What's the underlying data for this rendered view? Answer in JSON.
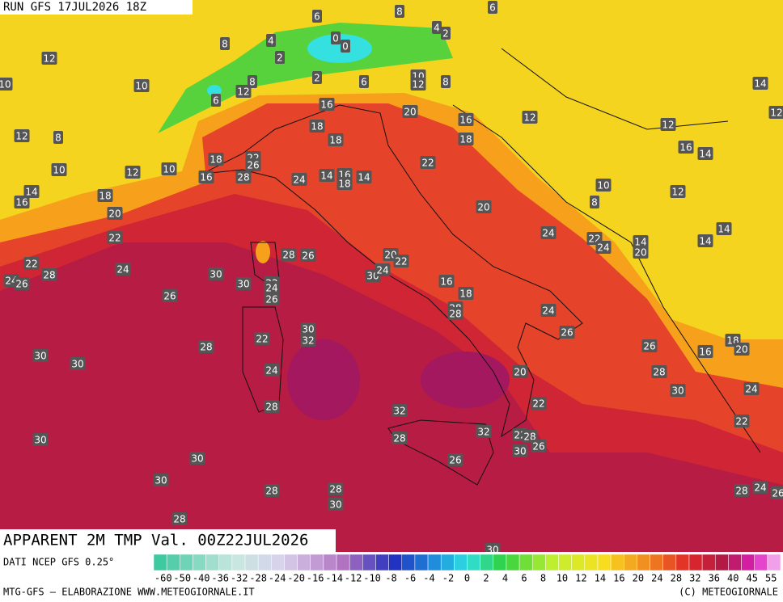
{
  "header": {
    "run": "RUN GFS 17JUL2026 18Z"
  },
  "map": {
    "title": "APPARENT 2M TMP Val. 00Z22JUL2026",
    "labels": [
      6,
      8,
      6,
      8,
      4,
      0,
      0,
      4,
      2,
      12,
      2,
      10,
      10,
      8,
      2,
      6,
      10,
      12,
      8,
      14,
      12,
      6,
      16,
      20,
      16,
      12,
      12,
      12,
      8,
      18,
      18,
      18,
      12,
      16,
      14,
      18,
      22,
      26,
      22,
      10,
      12,
      10,
      16,
      28,
      24,
      14,
      16,
      18,
      14,
      10,
      14,
      18,
      12,
      16,
      8,
      20,
      20,
      24,
      22,
      14,
      20,
      24,
      14,
      14,
      22,
      28,
      26,
      20,
      22,
      22,
      24,
      28,
      30,
      30,
      22,
      24,
      30,
      24,
      24,
      26,
      16,
      18,
      26,
      26,
      28,
      28,
      24,
      30,
      32,
      26,
      22,
      28,
      18,
      20,
      16,
      26,
      30,
      30,
      24,
      28,
      20,
      24,
      30,
      22,
      28,
      32,
      22,
      30,
      28,
      32,
      22,
      28,
      26,
      30,
      26,
      30,
      30,
      28,
      28,
      28,
      24,
      26,
      30,
      28,
      30
    ]
  },
  "legend": {
    "source": "DATI NCEP GFS 0.25°",
    "scale": [
      -60,
      -50,
      -40,
      -36,
      -32,
      -28,
      -24,
      -20,
      -16,
      -14,
      -12,
      -10,
      -8,
      -6,
      -4,
      -2,
      0,
      2,
      4,
      6,
      8,
      10,
      12,
      14,
      16,
      20,
      24,
      28,
      32,
      36,
      40,
      45,
      55
    ]
  },
  "footer": {
    "credit": "MTG-GFS — ELABORAZIONE WWW.METEOGIORNALE.IT",
    "copyright": "(C) METEOGIORNALE"
  }
}
